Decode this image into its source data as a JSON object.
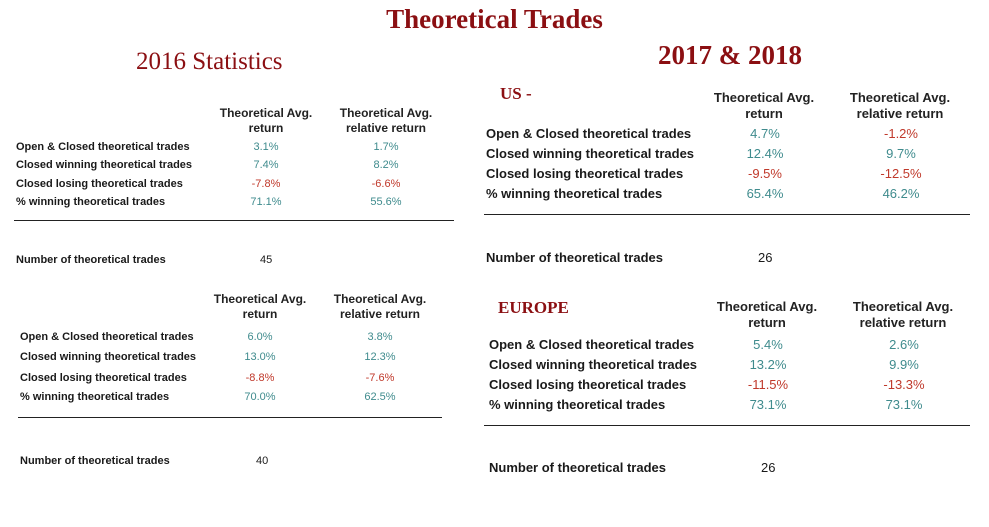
{
  "title": "Theoretical Trades",
  "subtitle_2016": "2016 Statistics",
  "subtitle_1718": "2017 & 2018",
  "columns": {
    "avg": "Theoretical Avg. return",
    "rel": "Theoretical Avg. relative return"
  },
  "count_label": "Number of theoretical trades",
  "tables": [
    {
      "region": "",
      "rows": [
        {
          "label": "Open & Closed theoretical trades",
          "avg": "3.1%",
          "rel": "1.7%"
        },
        {
          "label": "Closed winning theoretical trades",
          "avg": "7.4%",
          "rel": "8.2%"
        },
        {
          "label": "Closed losing theoretical trades",
          "avg": "-7.8%",
          "rel": "-6.6%"
        },
        {
          "label": "% winning theoretical trades",
          "avg": "71.1%",
          "rel": "55.6%"
        }
      ],
      "count": "45"
    },
    {
      "region": "",
      "rows": [
        {
          "label": "Open & Closed theoretical trades",
          "avg": "6.0%",
          "rel": "3.8%"
        },
        {
          "label": "Closed winning theoretical trades",
          "avg": "13.0%",
          "rel": "12.3%"
        },
        {
          "label": "Closed losing theoretical trades",
          "avg": "-8.8%",
          "rel": "-7.6%"
        },
        {
          "label": "% winning theoretical trades",
          "avg": "70.0%",
          "rel": "62.5%"
        }
      ],
      "count": "40"
    },
    {
      "region": "US -",
      "rows": [
        {
          "label": "Open & Closed theoretical trades",
          "avg": "4.7%",
          "rel": "-1.2%"
        },
        {
          "label": "Closed winning theoretical trades",
          "avg": "12.4%",
          "rel": "9.7%"
        },
        {
          "label": "Closed losing theoretical trades",
          "avg": "-9.5%",
          "rel": "-12.5%"
        },
        {
          "label": "% winning theoretical trades",
          "avg": "65.4%",
          "rel": "46.2%"
        }
      ],
      "count": "26"
    },
    {
      "region": "EUROPE",
      "rows": [
        {
          "label": "Open & Closed theoretical trades",
          "avg": "5.4%",
          "rel": "2.6%"
        },
        {
          "label": "Closed winning theoretical trades",
          "avg": "13.2%",
          "rel": "9.9%"
        },
        {
          "label": "Closed losing theoretical trades",
          "avg": "-11.5%",
          "rel": "-13.3%"
        },
        {
          "label": "% winning theoretical trades",
          "avg": "73.1%",
          "rel": "73.1%"
        }
      ],
      "count": "26"
    }
  ]
}
